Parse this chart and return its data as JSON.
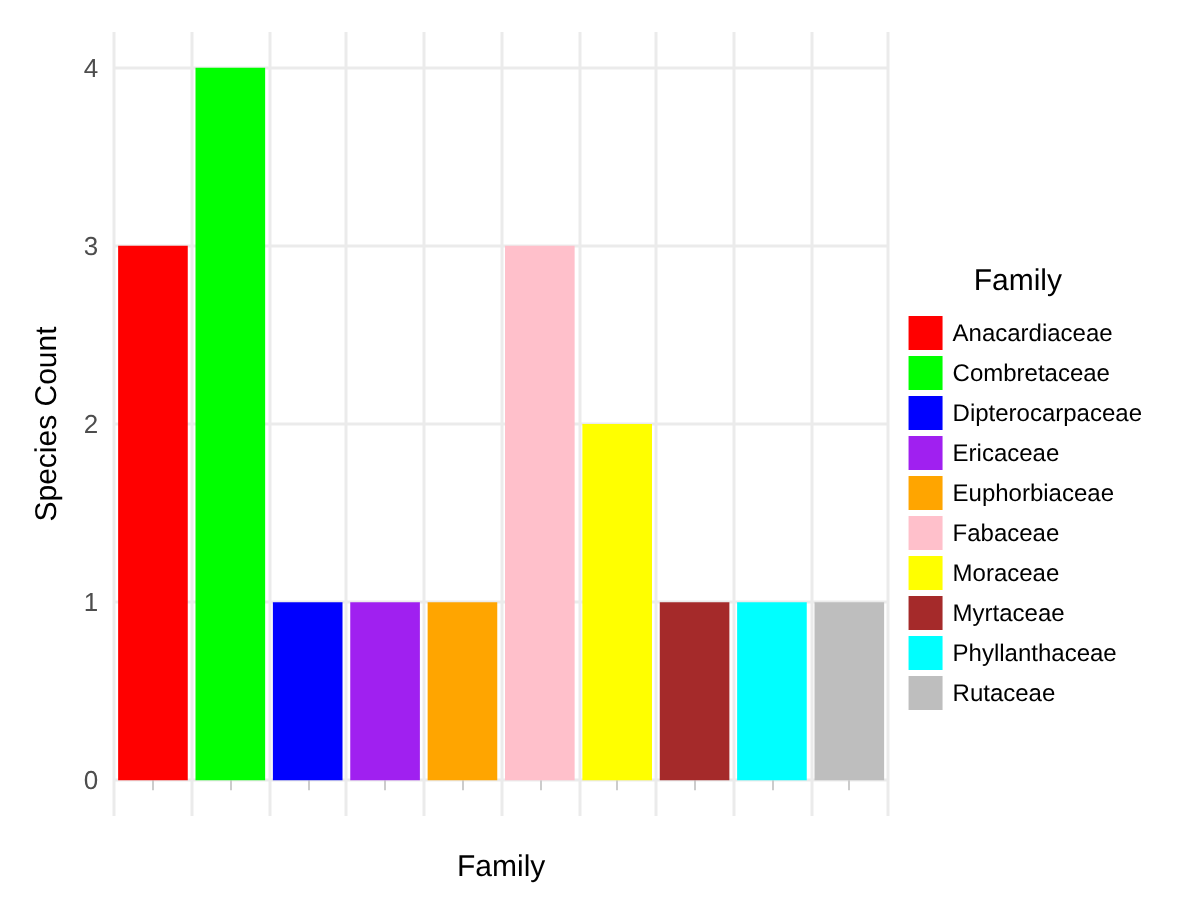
{
  "chart_data": {
    "type": "bar",
    "xlabel": "Family",
    "ylabel": "Species Count",
    "legend_title": "Family",
    "categories": [
      null,
      null,
      null,
      null,
      null,
      null,
      null,
      null,
      null,
      null
    ],
    "stacked": true,
    "series": [
      {
        "name": "Anacardiaceae",
        "color": "#ff0000",
        "values": [
          3,
          null,
          null,
          null,
          null,
          null,
          null,
          null,
          null,
          null
        ]
      },
      {
        "name": "Combretaceae",
        "color": "#00ff00",
        "values": [
          null,
          4,
          null,
          null,
          null,
          null,
          null,
          null,
          null,
          null
        ]
      },
      {
        "name": "Dipterocarpaceae",
        "color": "#0000ff",
        "values": [
          null,
          null,
          1,
          null,
          null,
          null,
          null,
          null,
          null,
          null
        ]
      },
      {
        "name": "Ericaceae",
        "color": "#a020f0",
        "values": [
          null,
          null,
          null,
          1,
          null,
          null,
          null,
          null,
          null,
          null
        ]
      },
      {
        "name": "Euphorbiaceae",
        "color": "#ffa500",
        "values": [
          null,
          null,
          null,
          null,
          1,
          null,
          null,
          null,
          null,
          null
        ]
      },
      {
        "name": "Fabaceae",
        "color": "#ffc0cb",
        "values": [
          null,
          null,
          null,
          null,
          null,
          3,
          null,
          null,
          null,
          null
        ]
      },
      {
        "name": "Moraceae",
        "color": "#ffff00",
        "values": [
          null,
          null,
          null,
          null,
          null,
          null,
          2,
          null,
          null,
          null
        ]
      },
      {
        "name": "Myrtaceae",
        "color": "#a52a2a",
        "values": [
          null,
          null,
          null,
          null,
          null,
          null,
          null,
          1,
          null,
          null
        ]
      },
      {
        "name": "Phyllanthaceae",
        "color": "#00ffff",
        "values": [
          null,
          null,
          null,
          null,
          null,
          null,
          null,
          null,
          1,
          null
        ]
      },
      {
        "name": "Rutaceae",
        "color": "#bebebe",
        "values": [
          null,
          null,
          null,
          null,
          null,
          null,
          null,
          null,
          null,
          1
        ]
      }
    ],
    "ylim": [
      -0.2,
      4.2
    ],
    "yticks": [
      0,
      1,
      2,
      3,
      4
    ],
    "grid": true,
    "legend": "right",
    "tick_labels": "y"
  }
}
